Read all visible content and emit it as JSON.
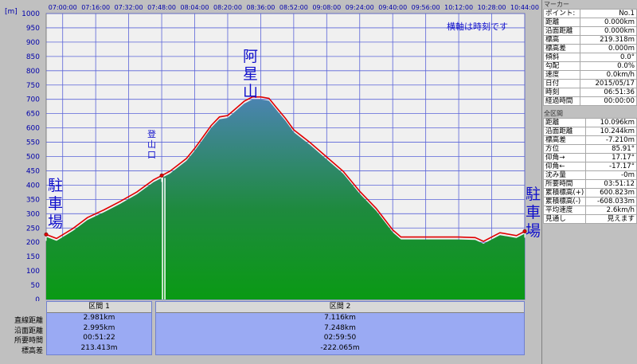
{
  "chart": {
    "y_unit": "[m]",
    "note": "横軸は時刻です",
    "y_ticks": [
      "0",
      "50",
      "100",
      "150",
      "200",
      "250",
      "300",
      "350",
      "400",
      "450",
      "500",
      "550",
      "600",
      "650",
      "700",
      "750",
      "800",
      "850",
      "900",
      "950",
      "1000"
    ],
    "x_ticks": [
      "07:00:00",
      "07:16:00",
      "07:32:00",
      "07:48:00",
      "08:04:00",
      "08:20:00",
      "08:36:00",
      "08:52:00",
      "09:08:00",
      "09:24:00",
      "09:40:00",
      "09:56:00",
      "10:12:00",
      "10:28:00",
      "10:44:00"
    ],
    "labels": {
      "parking_left": "駐車場",
      "trailhead": "登山口",
      "summit": "阿星山",
      "parking_right": "駐車場"
    },
    "colors": {
      "fill_top": "#4a84b0",
      "fill_bottom": "#0a9a14",
      "profile_line": "#e00000",
      "grid": "#5a64d8",
      "text": "#1010cc"
    }
  },
  "chart_data": {
    "type": "area",
    "xlabel": "",
    "ylabel": "[m]",
    "ylim": [
      0,
      1000
    ],
    "grid": true,
    "x": [
      "06:52",
      "06:57",
      "07:05",
      "07:12",
      "07:20",
      "07:28",
      "07:36",
      "07:44",
      "07:48",
      "07:52",
      "08:00",
      "08:04",
      "08:08",
      "08:12",
      "08:16",
      "08:20",
      "08:24",
      "08:28",
      "08:32",
      "08:36",
      "08:40",
      "08:44",
      "08:48",
      "08:52",
      "09:00",
      "09:08",
      "09:16",
      "09:24",
      "09:32",
      "09:40",
      "09:44",
      "09:56",
      "10:12",
      "10:20",
      "10:24",
      "10:32",
      "10:40",
      "10:44"
    ],
    "series": [
      {
        "values": [
          219,
          205,
          240,
          278,
          305,
          335,
          368,
          410,
          425,
          440,
          485,
          520,
          560,
          600,
          630,
          635,
          660,
          685,
          700,
          700,
          695,
          660,
          625,
          585,
          540,
          490,
          440,
          370,
          310,
          235,
          210,
          210,
          210,
          208,
          195,
          225,
          215,
          230
        ]
      }
    ]
  },
  "sections": {
    "row_labels": [
      "直線距離",
      "沿面距離",
      "所要時間",
      "標高差"
    ],
    "items": [
      {
        "name": "区間 1",
        "values": [
          "2.981km",
          "2.995km",
          "00:51:22",
          "213.413m"
        ]
      },
      {
        "name": "区間 2",
        "values": [
          "7.116km",
          "7.248km",
          "02:59:50",
          "-222.065m"
        ]
      }
    ]
  },
  "marker": {
    "title": "マーカー",
    "rows": [
      {
        "k": "ポイント:",
        "v": "No.1"
      },
      {
        "k": "距離",
        "v": "0.000km"
      },
      {
        "k": "沿面距離",
        "v": "0.000km"
      },
      {
        "k": "標高",
        "v": "219.318m"
      },
      {
        "k": "標高差",
        "v": "0.000m"
      },
      {
        "k": "傾斜",
        "v": "0.0°"
      },
      {
        "k": "勾配",
        "v": "0.0%"
      },
      {
        "k": "速度",
        "v": "0.0km/h"
      },
      {
        "k": "日付",
        "v": "2015/05/17"
      },
      {
        "k": "時刻",
        "v": "06:51:36"
      },
      {
        "k": "経過時間",
        "v": "00:00:00"
      }
    ]
  },
  "total": {
    "title": "全区間",
    "rows": [
      {
        "k": "距離",
        "v": "10.096km"
      },
      {
        "k": "沿面距離",
        "v": "10.244km"
      },
      {
        "k": "標高差",
        "v": "-7.210m"
      },
      {
        "k": "方位",
        "v": "85.91°"
      },
      {
        "k": "仰角→",
        "v": "17.17°"
      },
      {
        "k": "仰角←",
        "v": "-17.17°"
      },
      {
        "k": "沈み量",
        "v": "-0m"
      },
      {
        "k": "所要時間",
        "v": "03:51:12"
      },
      {
        "k": "累積標高(+)",
        "v": "600.823m"
      },
      {
        "k": "累積標高(-)",
        "v": "-608.033m"
      },
      {
        "k": "平均速度",
        "v": "2.6km/h"
      },
      {
        "k": "見通し",
        "v": "見えます"
      }
    ]
  }
}
